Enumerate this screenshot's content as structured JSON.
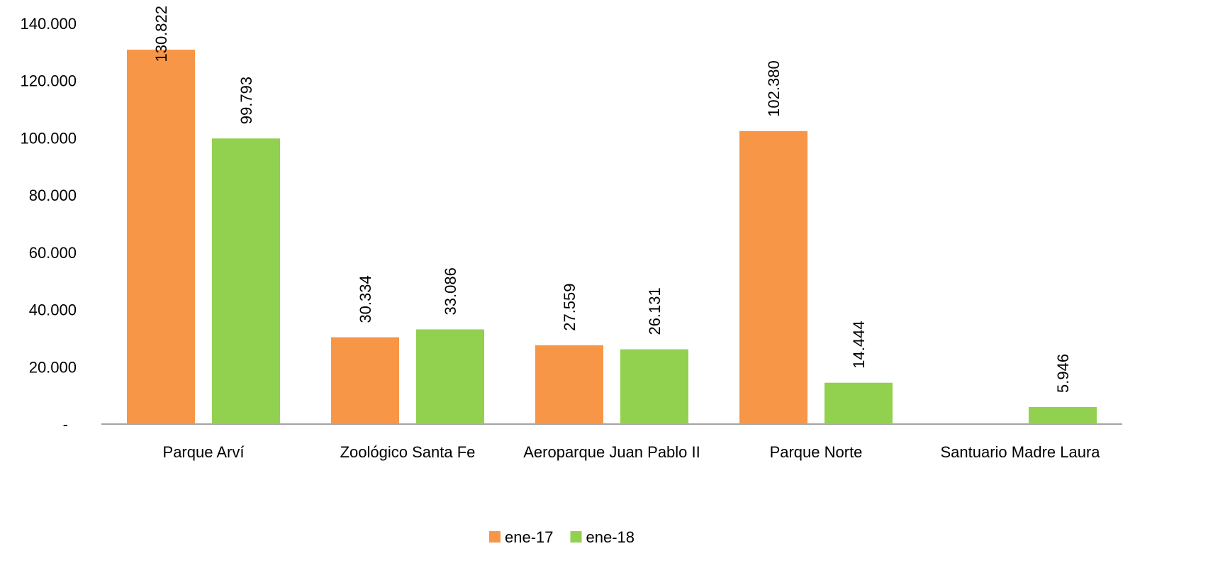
{
  "chart_data": {
    "type": "bar",
    "categories": [
      "Parque Arví",
      "Zoológico Santa Fe",
      "Aeroparque Juan Pablo II",
      "Parque Norte",
      "Santuario Madre Laura"
    ],
    "series": [
      {
        "name": "ene-17",
        "color": "#f79646",
        "values": [
          130822,
          30334,
          27559,
          102380,
          null
        ],
        "value_labels": [
          "130.822",
          "30.334",
          "27.559",
          "102.380",
          null
        ]
      },
      {
        "name": "ene-18",
        "color": "#92d050",
        "values": [
          99793,
          33086,
          26131,
          14444,
          5946
        ],
        "value_labels": [
          "99.793",
          "33.086",
          "26.131",
          "14.444",
          "5.946"
        ]
      }
    ],
    "ylim": [
      0,
      140000
    ],
    "yticks": [
      {
        "value": 0,
        "label": "-"
      },
      {
        "value": 20000,
        "label": "20.000"
      },
      {
        "value": 40000,
        "label": "40.000"
      },
      {
        "value": 60000,
        "label": "60.000"
      },
      {
        "value": 80000,
        "label": "80.000"
      },
      {
        "value": 100000,
        "label": "100.000"
      },
      {
        "value": 120000,
        "label": "120.000"
      },
      {
        "value": 140000,
        "label": "140.000"
      }
    ],
    "grid": false,
    "legend": "bottom"
  }
}
